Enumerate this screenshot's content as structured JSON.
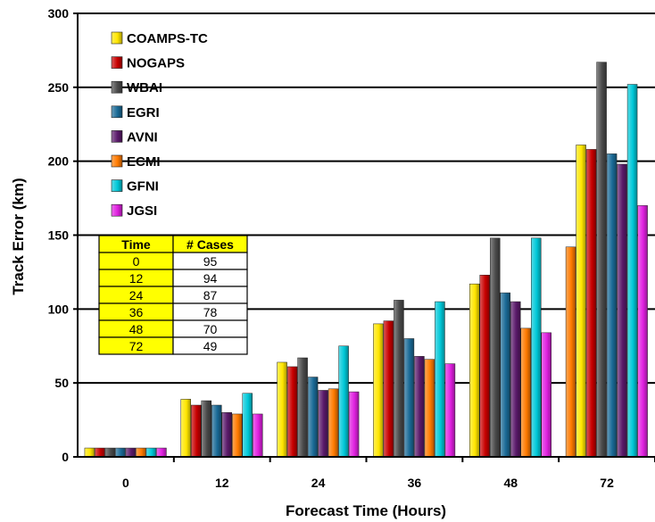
{
  "chart_data": {
    "type": "bar",
    "title": "",
    "xlabel": "Forecast Time (Hours)",
    "ylabel": "Track Error (km)",
    "ylim": [
      0,
      300
    ],
    "yticks": [
      0,
      50,
      100,
      150,
      200,
      250,
      300
    ],
    "grid": "horizontal",
    "legend_position": "top-left",
    "categories": [
      "0",
      "12",
      "24",
      "36",
      "48",
      "72"
    ],
    "series": [
      {
        "name": "COAMPS-TC",
        "color": "#ffe600",
        "values": [
          6,
          39,
          64,
          90,
          117,
          211
        ]
      },
      {
        "name": "NOGAPS",
        "color": "#c80000",
        "values": [
          6,
          35,
          61,
          92,
          123,
          208
        ]
      },
      {
        "name": "WBAI",
        "color": "#4a4a4a",
        "values": [
          6,
          38,
          67,
          106,
          148,
          267
        ]
      },
      {
        "name": "EGRI",
        "color": "#1a6a96",
        "values": [
          6,
          35,
          54,
          80,
          111,
          205
        ]
      },
      {
        "name": "AVNI",
        "color": "#5a1a6a",
        "values": [
          6,
          30,
          45,
          68,
          105,
          198
        ]
      },
      {
        "name": "ECMI",
        "color": "#ff7a00",
        "values": [
          6,
          29,
          46,
          66,
          87,
          142
        ]
      },
      {
        "name": "GFNI",
        "color": "#00c8d8",
        "values": [
          6,
          43,
          75,
          105,
          148,
          252
        ]
      },
      {
        "name": "JGSI",
        "color": "#e020e0",
        "values": [
          6,
          29,
          44,
          63,
          84,
          170
        ]
      }
    ],
    "plotted_order": {
      "0": [
        "COAMPS-TC",
        "NOGAPS",
        "WBAI",
        "EGRI",
        "AVNI",
        "ECMI",
        "GFNI",
        "JGSI"
      ],
      "12": [
        "COAMPS-TC",
        "NOGAPS",
        "WBAI",
        "EGRI",
        "AVNI",
        "ECMI",
        "GFNI",
        "JGSI"
      ],
      "24": [
        "COAMPS-TC",
        "NOGAPS",
        "WBAI",
        "EGRI",
        "AVNI",
        "ECMI",
        "GFNI",
        "JGSI"
      ],
      "36": [
        "COAMPS-TC",
        "NOGAPS",
        "WBAI",
        "EGRI",
        "AVNI",
        "ECMI",
        "GFNI",
        "JGSI"
      ],
      "48": [
        "COAMPS-TC",
        "NOGAPS",
        "WBAI",
        "EGRI",
        "AVNI",
        "ECMI",
        "GFNI",
        "JGSI"
      ],
      "72": [
        "ECMI",
        "COAMPS-TC",
        "NOGAPS",
        "WBAI",
        "EGRI",
        "AVNI",
        "GFNI",
        "JGSI"
      ]
    },
    "table": {
      "headers": [
        "Time",
        "# Cases"
      ],
      "rows": [
        [
          "0",
          "95"
        ],
        [
          "12",
          "94"
        ],
        [
          "24",
          "87"
        ],
        [
          "36",
          "78"
        ],
        [
          "48",
          "70"
        ],
        [
          "72",
          "49"
        ]
      ]
    }
  }
}
